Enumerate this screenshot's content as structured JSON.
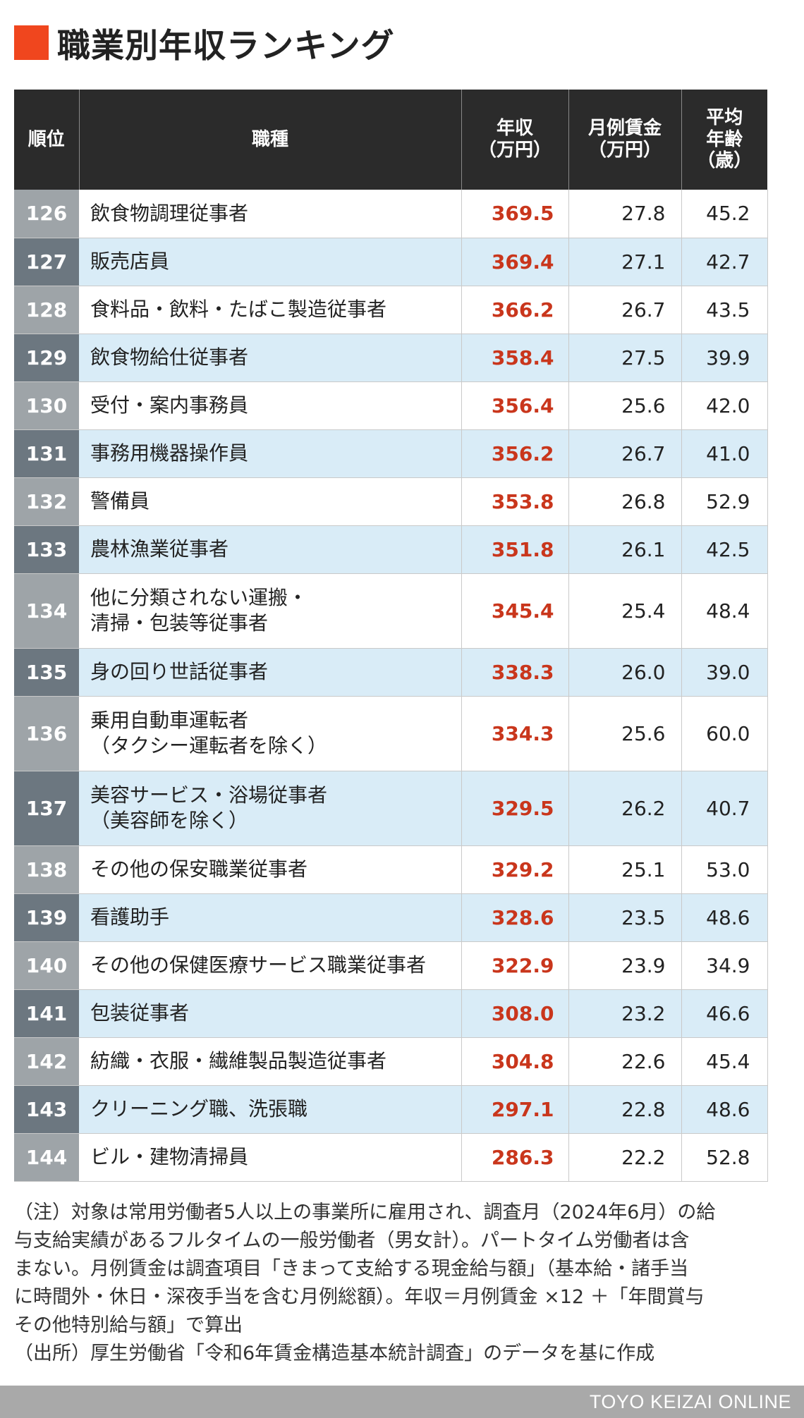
{
  "title": "職業別年収ランキング",
  "colors": {
    "accent": "#f0461e",
    "header_bg": "#2b2b2b",
    "value_red": "#c9361c",
    "row_blue": "#d9ecf7"
  },
  "table": {
    "headers": {
      "rank": "順位",
      "job": "職種",
      "annual": "年収\n（万円）",
      "monthly": "月例賃金\n（万円）",
      "age": "平均\n年齢\n（歳）"
    },
    "rows": [
      {
        "rank": "126",
        "job": [
          "飲食物調理従事者"
        ],
        "annual": "369.5",
        "monthly": "27.8",
        "age": "45.2"
      },
      {
        "rank": "127",
        "job": [
          "販売店員"
        ],
        "annual": "369.4",
        "monthly": "27.1",
        "age": "42.7"
      },
      {
        "rank": "128",
        "job": [
          "食料品・飲料・たばこ製造従事者"
        ],
        "annual": "366.2",
        "monthly": "26.7",
        "age": "43.5"
      },
      {
        "rank": "129",
        "job": [
          "飲食物給仕従事者"
        ],
        "annual": "358.4",
        "monthly": "27.5",
        "age": "39.9"
      },
      {
        "rank": "130",
        "job": [
          "受付・案内事務員"
        ],
        "annual": "356.4",
        "monthly": "25.6",
        "age": "42.0"
      },
      {
        "rank": "131",
        "job": [
          "事務用機器操作員"
        ],
        "annual": "356.2",
        "monthly": "26.7",
        "age": "41.0"
      },
      {
        "rank": "132",
        "job": [
          "警備員"
        ],
        "annual": "353.8",
        "monthly": "26.8",
        "age": "52.9"
      },
      {
        "rank": "133",
        "job": [
          "農林漁業従事者"
        ],
        "annual": "351.8",
        "monthly": "26.1",
        "age": "42.5"
      },
      {
        "rank": "134",
        "job": [
          "他に分類されない運搬・",
          "清掃・包装等従事者"
        ],
        "annual": "345.4",
        "monthly": "25.4",
        "age": "48.4"
      },
      {
        "rank": "135",
        "job": [
          "身の回り世話従事者"
        ],
        "annual": "338.3",
        "monthly": "26.0",
        "age": "39.0"
      },
      {
        "rank": "136",
        "job": [
          "乗用自動車運転者",
          "（タクシー運転者を除く）"
        ],
        "annual": "334.3",
        "monthly": "25.6",
        "age": "60.0"
      },
      {
        "rank": "137",
        "job": [
          "美容サービス・浴場従事者",
          "（美容師を除く）"
        ],
        "annual": "329.5",
        "monthly": "26.2",
        "age": "40.7"
      },
      {
        "rank": "138",
        "job": [
          "その他の保安職業従事者"
        ],
        "annual": "329.2",
        "monthly": "25.1",
        "age": "53.0"
      },
      {
        "rank": "139",
        "job": [
          "看護助手"
        ],
        "annual": "328.6",
        "monthly": "23.5",
        "age": "48.6"
      },
      {
        "rank": "140",
        "job": [
          "その他の保健医療サービス職業従事者"
        ],
        "annual": "322.9",
        "monthly": "23.9",
        "age": "34.9"
      },
      {
        "rank": "141",
        "job": [
          "包装従事者"
        ],
        "annual": "308.0",
        "monthly": "23.2",
        "age": "46.6"
      },
      {
        "rank": "142",
        "job": [
          "紡織・衣服・繊維製品製造従事者"
        ],
        "annual": "304.8",
        "monthly": "22.6",
        "age": "45.4"
      },
      {
        "rank": "143",
        "job": [
          "クリーニング職、洗張職"
        ],
        "annual": "297.1",
        "monthly": "22.8",
        "age": "48.6"
      },
      {
        "rank": "144",
        "job": [
          "ビル・建物清掃員"
        ],
        "annual": "286.3",
        "monthly": "22.2",
        "age": "52.8"
      }
    ]
  },
  "note": "（注）対象は常用労働者5人以上の事業所に雇用され、調査月（2024年6月）の給\n与支給実績があるフルタイムの一般労働者（男女計）。パートタイム労働者は含\nまない。月例賃金は調査項目「きまって支給する現金給与額」（基本給・諸手当\nに時間外・休日・深夜手当を含む月例総額）。年収＝月例賃金 ×12 ＋「年間賞与\nその他特別給与額」で算出",
  "source": "（出所）厚生労働省「令和6年賃金構造基本統計調査」のデータを基に作成",
  "footer": "TOYO KEIZAI ONLINE"
}
